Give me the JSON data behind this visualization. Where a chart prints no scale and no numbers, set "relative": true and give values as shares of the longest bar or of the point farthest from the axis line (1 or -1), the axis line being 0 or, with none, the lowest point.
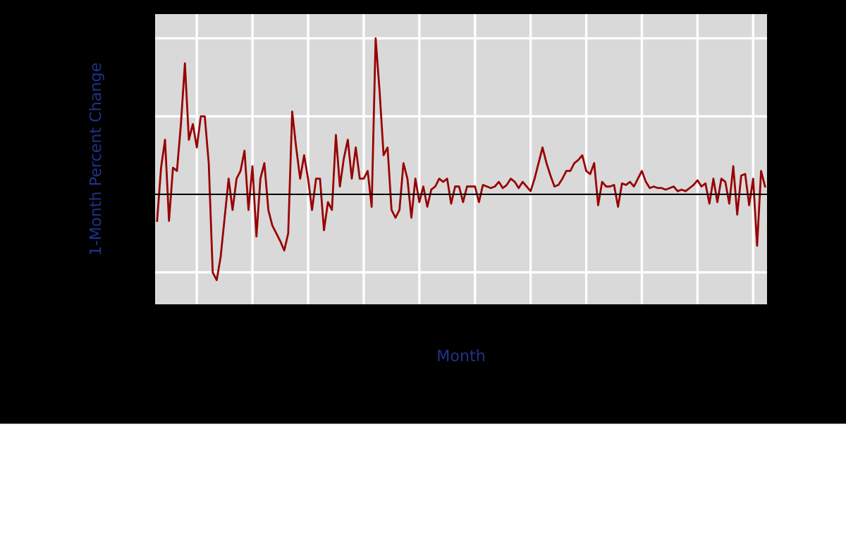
{
  "chart_data": {
    "type": "line",
    "relative": true,
    "xlabel": "Month",
    "ylabel": "1-Month Percent Change",
    "grid": true,
    "legend": false,
    "tick_labels": false,
    "categories": [
      null,
      null,
      null,
      null,
      null,
      null,
      null,
      null,
      null,
      null,
      null,
      null,
      null,
      null,
      null,
      null,
      null,
      null,
      null,
      null,
      null,
      null,
      null,
      null,
      null,
      null,
      null,
      null,
      null,
      null,
      null,
      null,
      null,
      null,
      null,
      null,
      null,
      null,
      null,
      null,
      null,
      null,
      null,
      null,
      null,
      null,
      null,
      null,
      null,
      null,
      null,
      null,
      null,
      null,
      null,
      null,
      null,
      null,
      null,
      null,
      null,
      null,
      null,
      null,
      null,
      null,
      null,
      null,
      null,
      null,
      null,
      null,
      null,
      null,
      null,
      null,
      null,
      null,
      null,
      null,
      null,
      null,
      null,
      null,
      null,
      null,
      null,
      null,
      null,
      null,
      null,
      null,
      null,
      null,
      null,
      null,
      null,
      null,
      null,
      null,
      null,
      null,
      null,
      null,
      null,
      null,
      null,
      null,
      null,
      null,
      null,
      null,
      null,
      null,
      null,
      null,
      null,
      null,
      null,
      null,
      null,
      null,
      null,
      null,
      null,
      null,
      null,
      null,
      null,
      null,
      null,
      null,
      null,
      null,
      null,
      null,
      null,
      null,
      null,
      null,
      null,
      null,
      null,
      null,
      null,
      null,
      null,
      null,
      null,
      null,
      null,
      null,
      null,
      null
    ],
    "values": [
      -0.17,
      0.17,
      0.35,
      -0.17,
      0.17,
      0.15,
      0.45,
      0.84,
      0.35,
      0.45,
      0.3,
      0.5,
      0.5,
      0.2,
      -0.5,
      -0.55,
      -0.4,
      -0.15,
      0.1,
      -0.1,
      0.1,
      0.15,
      0.28,
      -0.1,
      0.18,
      -0.27,
      0.1,
      0.2,
      -0.1,
      -0.2,
      -0.25,
      -0.3,
      -0.36,
      -0.25,
      0.53,
      0.3,
      0.1,
      0.25,
      0.1,
      -0.1,
      0.1,
      0.1,
      -0.23,
      -0.05,
      -0.1,
      0.38,
      0.05,
      0.23,
      0.35,
      0.1,
      0.3,
      0.1,
      0.1,
      0.15,
      -0.08,
      1.0,
      0.66,
      0.25,
      0.3,
      -0.1,
      -0.15,
      -0.1,
      0.2,
      0.1,
      -0.15,
      0.1,
      -0.05,
      0.05,
      -0.08,
      0.03,
      0.05,
      0.1,
      0.08,
      0.1,
      -0.06,
      0.05,
      0.05,
      -0.05,
      0.05,
      0.05,
      0.05,
      -0.05,
      0.06,
      0.05,
      0.04,
      0.05,
      0.08,
      0.04,
      0.06,
      0.1,
      0.08,
      0.04,
      0.08,
      0.05,
      0.02,
      0.1,
      0.2,
      0.3,
      0.2,
      0.12,
      0.05,
      0.06,
      0.1,
      0.15,
      0.15,
      0.2,
      0.22,
      0.25,
      0.15,
      0.13,
      0.2,
      -0.07,
      0.08,
      0.05,
      0.05,
      0.06,
      -0.08,
      0.07,
      0.06,
      0.08,
      0.05,
      0.1,
      0.15,
      0.08,
      0.04,
      0.05,
      0.04,
      0.04,
      0.03,
      0.04,
      0.05,
      0.02,
      0.03,
      0.02,
      0.04,
      0.06,
      0.09,
      0.05,
      0.07,
      -0.06,
      0.1,
      -0.05,
      0.1,
      0.08,
      -0.06,
      0.18,
      -0.13,
      0.12,
      0.13,
      -0.07,
      0.1,
      -0.33,
      0.15,
      0.05
    ],
    "color": "#990000"
  }
}
